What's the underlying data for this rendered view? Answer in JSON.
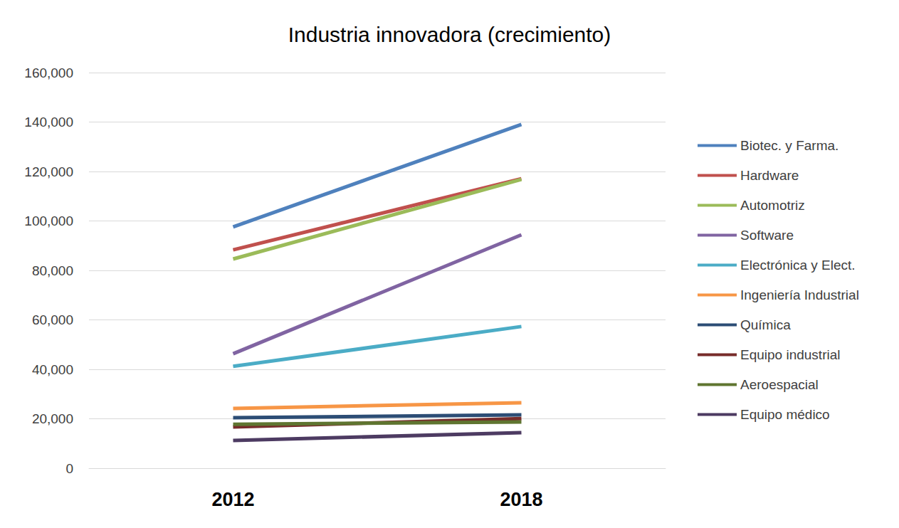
{
  "chart_data": {
    "type": "line",
    "title": "Industria innovadora (crecimiento)",
    "categories": [
      "2012",
      "2018"
    ],
    "series": [
      {
        "name": "Biotec. y Farma.",
        "color": "#4F81BD",
        "values": [
          97600,
          139000
        ]
      },
      {
        "name": "Hardware",
        "color": "#C0504D",
        "values": [
          88300,
          117100
        ]
      },
      {
        "name": "Automotriz",
        "color": "#9BBB59",
        "values": [
          84600,
          116800
        ]
      },
      {
        "name": "Software",
        "color": "#8064A2",
        "values": [
          46300,
          94400
        ]
      },
      {
        "name": "Electrónica y Elect.",
        "color": "#4BACC6",
        "values": [
          41200,
          57300
        ]
      },
      {
        "name": "Ingeniería Industrial",
        "color": "#F79646",
        "values": [
          24200,
          26500
        ]
      },
      {
        "name": "Química",
        "color": "#2C4D75",
        "values": [
          20400,
          21600
        ]
      },
      {
        "name": "Equipo industrial",
        "color": "#772C2A",
        "values": [
          16700,
          20100
        ]
      },
      {
        "name": "Aeroespacial",
        "color": "#5F7530",
        "values": [
          17800,
          18700
        ]
      },
      {
        "name": "Equipo médico",
        "color": "#4D3B62",
        "values": [
          11200,
          14400
        ]
      }
    ],
    "ylim": [
      0,
      160000
    ],
    "yticks": [
      0,
      {
        "value": 20000,
        "label": "20,000"
      },
      {
        "value": 40000,
        "label": "40,000"
      },
      {
        "value": 60000,
        "label": "60,000"
      },
      {
        "value": 80000,
        "label": "80,000"
      },
      {
        "value": 100000,
        "label": "100,000"
      },
      {
        "value": 120000,
        "label": "120,000"
      },
      {
        "value": 140000,
        "label": "140,000"
      },
      {
        "value": 160000,
        "label": "160,000"
      }
    ],
    "grid": true,
    "legend": "right"
  }
}
